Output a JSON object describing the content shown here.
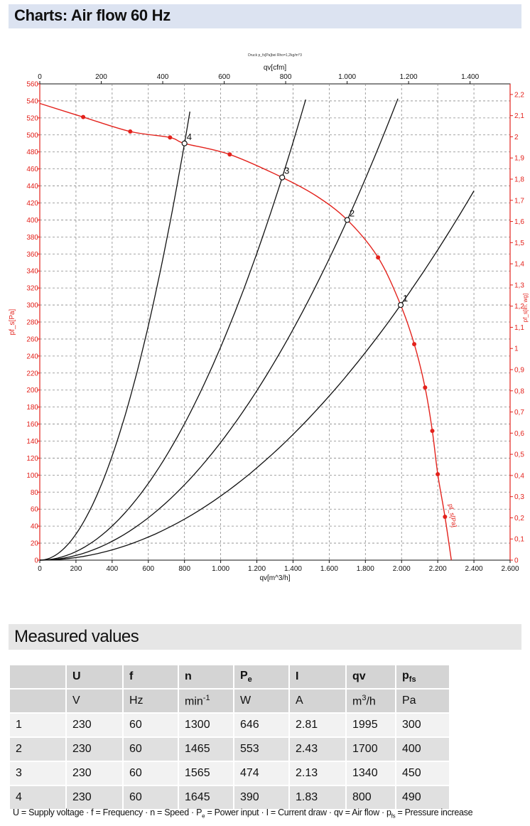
{
  "page_title": "Charts: Air flow 60 Hz",
  "measured": {
    "title": "Measured values",
    "headers": [
      "",
      "U",
      "f",
      "n",
      "Pe",
      "I",
      "qv",
      "pfs"
    ],
    "units": [
      "",
      "V",
      "Hz",
      "min-1",
      "W",
      "A",
      "m3/h",
      "Pa"
    ],
    "rows": [
      [
        "1",
        "230",
        "60",
        "1300",
        "646",
        "2.81",
        "1995",
        "300"
      ],
      [
        "2",
        "230",
        "60",
        "1465",
        "553",
        "2.43",
        "1700",
        "400"
      ],
      [
        "3",
        "230",
        "60",
        "1565",
        "474",
        "2.13",
        "1340",
        "450"
      ],
      [
        "4",
        "230",
        "60",
        "1645",
        "390",
        "1.83",
        "800",
        "490"
      ]
    ],
    "legend": {
      "u": "U = Supply voltage",
      "f": "f = Frequency",
      "n": "n = Speed",
      "pe": "P",
      "pe_sub": "e",
      "pe_rest": " = Power input",
      "i": "I = Current draw",
      "qv": "qv = Air flow",
      "pfs": "p",
      "pfs_sub": "fs",
      "pfs_rest": " = Pressure increase",
      "sep": " · "
    }
  },
  "chart_data": {
    "type": "line",
    "top_note": "Druck p_fs[Pa]bei Rho=1,2kg/m^3",
    "xlabel": "qv[m^3/h]",
    "x2label": "qv[cfm]",
    "ylabel": "pf_s[Pa]",
    "y2label": "pf_s[in. wg]",
    "xlim": [
      0,
      2600
    ],
    "ylim": [
      0,
      560
    ],
    "x2lim": [
      0,
      1530.3
    ],
    "y2lim": [
      0,
      2.25
    ],
    "x_ticks": [
      "0",
      "200",
      "400",
      "600",
      "800",
      "1.000",
      "1.200",
      "1.400",
      "1.600",
      "1.800",
      "2.000",
      "2.200",
      "2.400",
      "2.600"
    ],
    "y_ticks": [
      "0",
      "20",
      "40",
      "60",
      "80",
      "100",
      "120",
      "140",
      "160",
      "180",
      "200",
      "220",
      "240",
      "260",
      "280",
      "300",
      "320",
      "340",
      "360",
      "380",
      "400",
      "420",
      "440",
      "460",
      "480",
      "500",
      "520",
      "540",
      "560"
    ],
    "x2_ticks": [
      "0",
      "200",
      "400",
      "600",
      "800",
      "1.000",
      "1.200",
      "1.400"
    ],
    "y2_ticks": [
      "0",
      "0,1",
      "0,2",
      "0,3",
      "0,4",
      "0,5",
      "0,6",
      "0,7",
      "0,8",
      "0,9",
      "1",
      "1,1",
      "1,2",
      "1,3",
      "1,4",
      "1,5",
      "1,6",
      "1,7",
      "1,8",
      "1,9",
      "2",
      "2,1",
      "2,2"
    ],
    "grid": true,
    "fan_curve": {
      "label": "pf_s[Pa]",
      "color": "#e3221c",
      "x": [
        0,
        240,
        500,
        720,
        800,
        1050,
        1340,
        1530,
        1700,
        1870,
        1995,
        2070,
        2130,
        2170,
        2200,
        2240,
        2275
      ],
      "y": [
        537,
        521,
        504,
        497,
        490,
        477,
        450,
        428,
        400,
        356,
        300,
        254,
        203,
        152,
        101,
        51,
        0
      ]
    },
    "marker_points": {
      "x": [
        240,
        500,
        720,
        1050,
        1870,
        2070,
        2130,
        2170,
        2200,
        2240
      ],
      "y": [
        521,
        504,
        497,
        477,
        356,
        254,
        203,
        152,
        101,
        51
      ]
    },
    "system_curves": [
      {
        "label": "1",
        "x": [
          0,
          1995,
          2400
        ],
        "y": [
          0,
          300,
          434
        ]
      },
      {
        "label": "2",
        "x": [
          0,
          1700,
          1980
        ],
        "y": [
          0,
          400,
          543
        ]
      },
      {
        "label": "3",
        "x": [
          0,
          1340,
          1470
        ],
        "y": [
          0,
          450,
          542
        ]
      },
      {
        "label": "4",
        "x": [
          0,
          800,
          830
        ],
        "y": [
          0,
          490,
          528
        ]
      }
    ],
    "operating_points": [
      {
        "label": "1",
        "x": 1995,
        "y": 300
      },
      {
        "label": "2",
        "x": 1700,
        "y": 400
      },
      {
        "label": "3",
        "x": 1340,
        "y": 450
      },
      {
        "label": "4",
        "x": 800,
        "y": 490
      }
    ],
    "colors": {
      "red": "#e3221c",
      "black": "#111111",
      "grid": "#888888"
    }
  }
}
